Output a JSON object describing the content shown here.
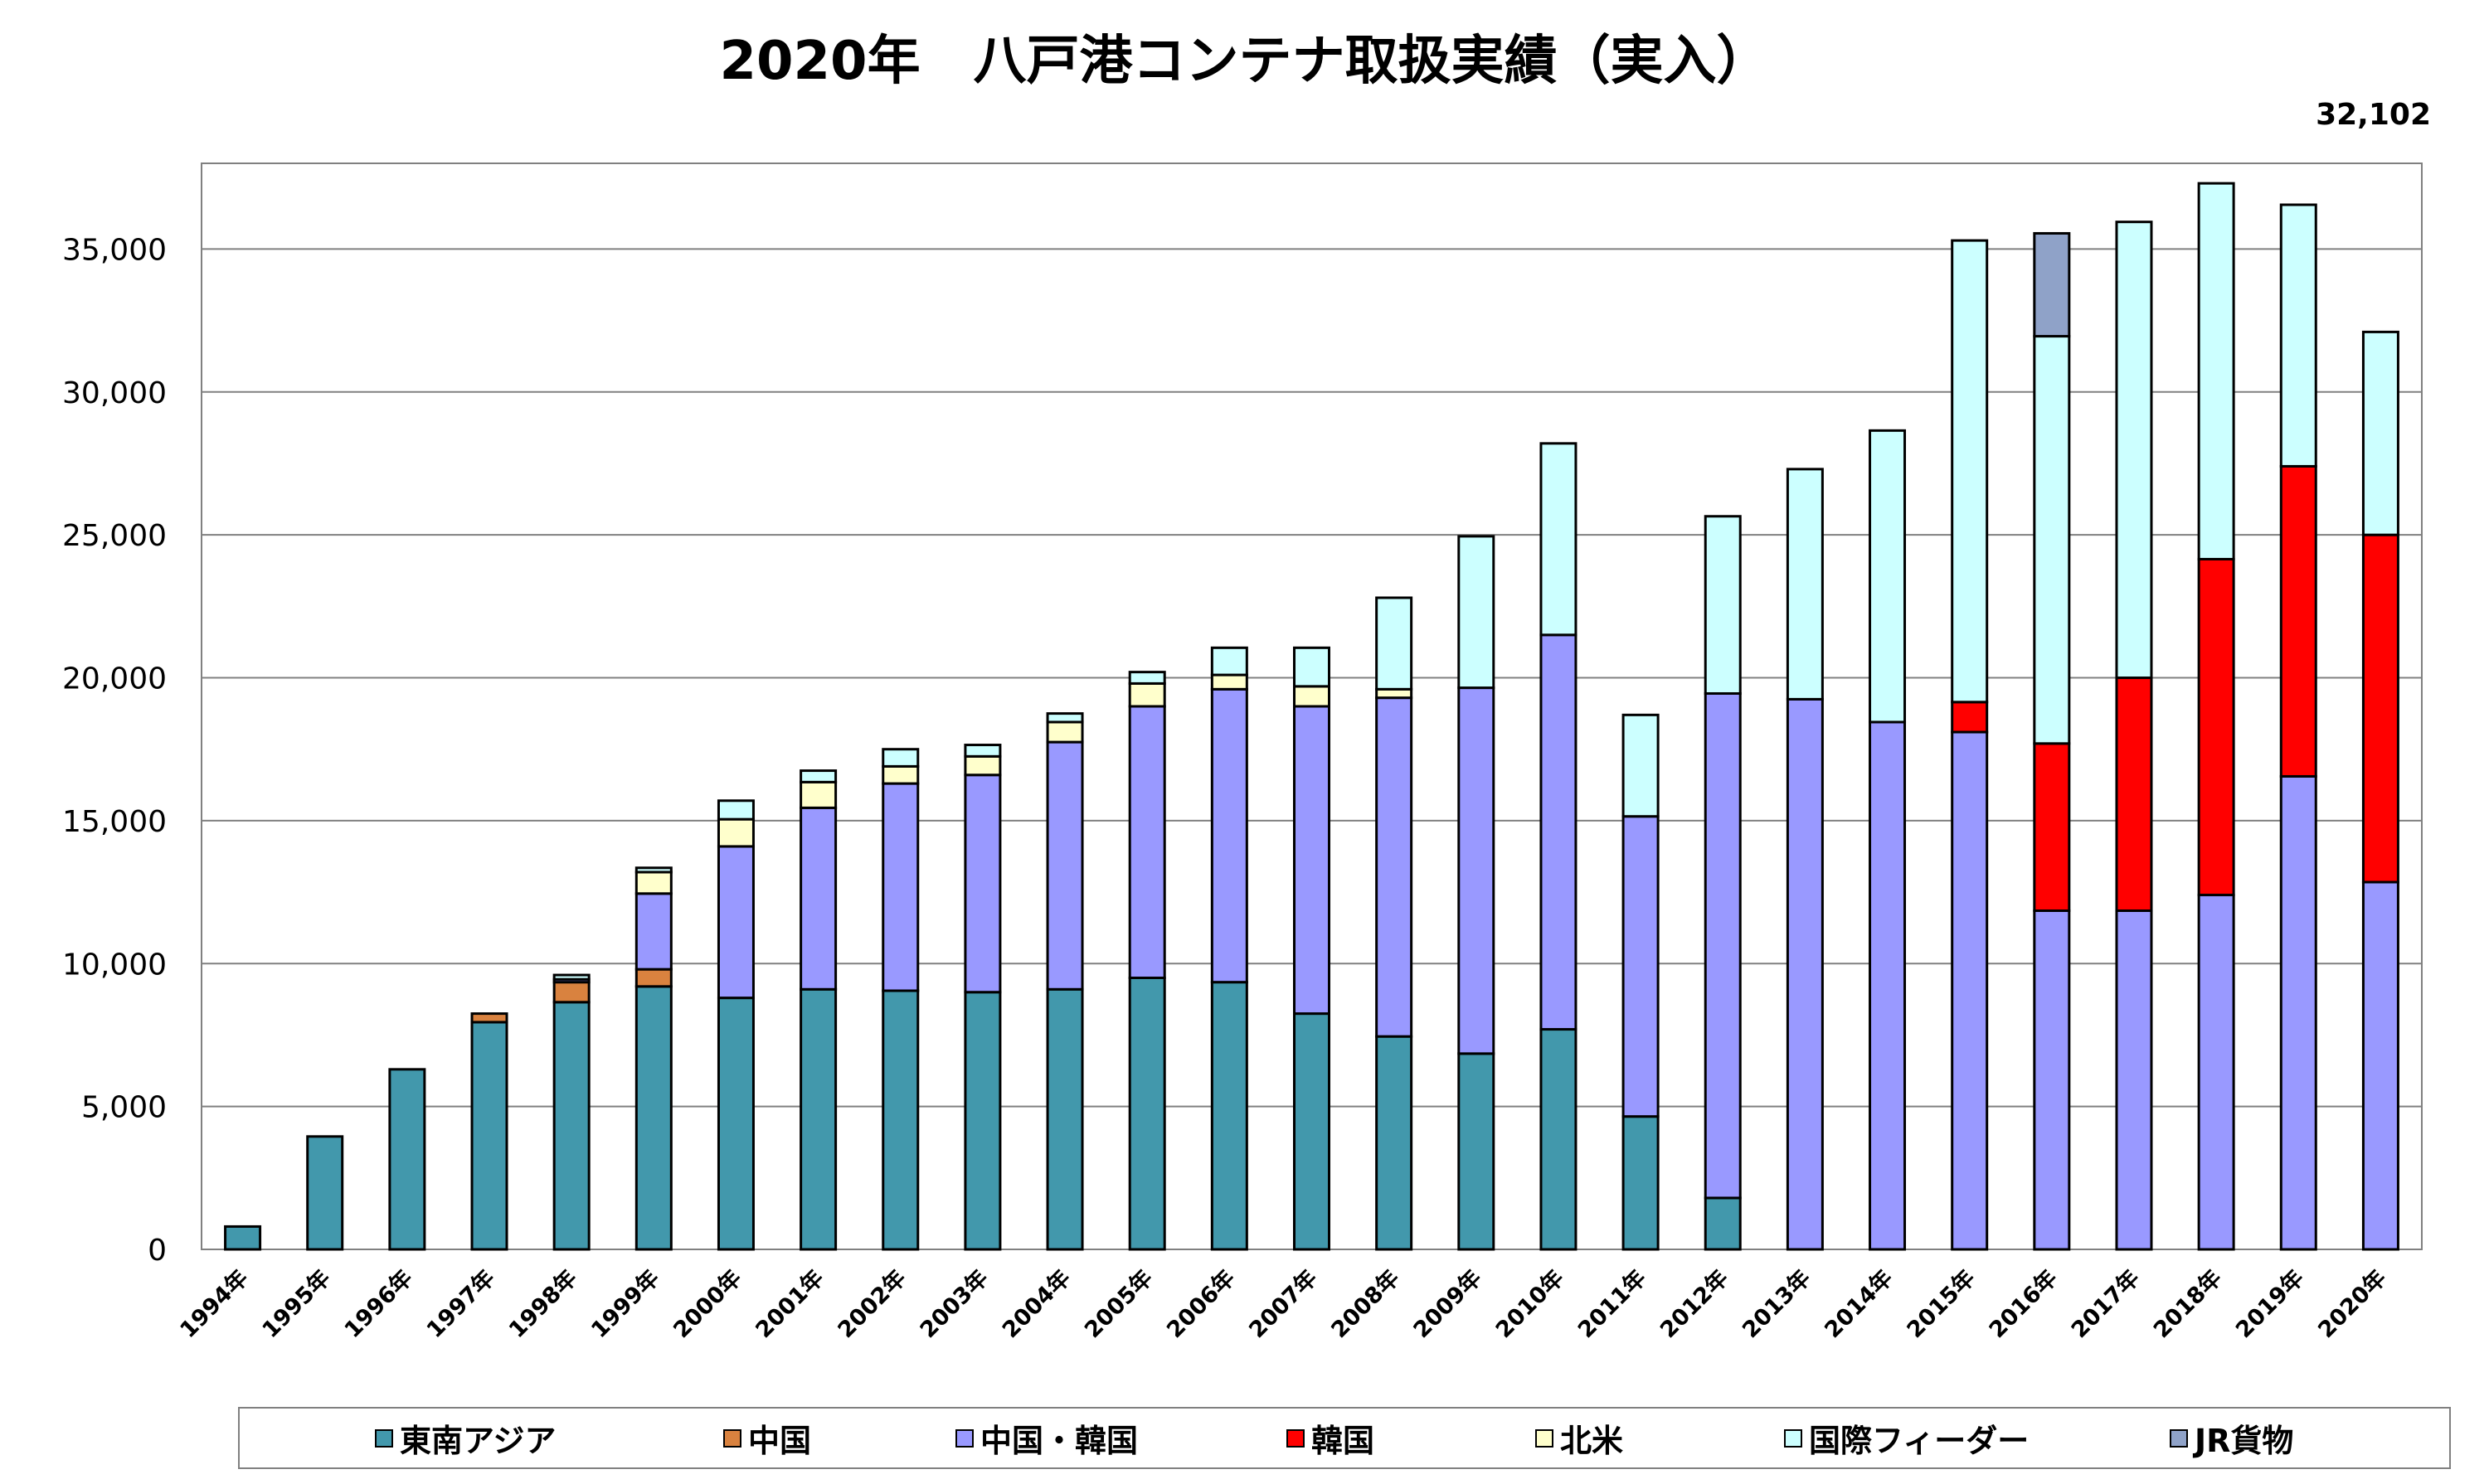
{
  "colors": {
    "東南アジア": "#4298ac",
    "中国": "#d9823f",
    "中国・韓国": "#9999ff",
    "韓国": "#ff0000",
    "北米": "#ffffcc",
    "国際フィーダー": "#ccffff",
    "JR貨物": "#8fa2c8"
  },
  "chart_data": {
    "type": "bar",
    "stacked": true,
    "title": "2020年　八戸港コンテナ取扱実績（実入）",
    "annotation": "32,102",
    "xlabel": "",
    "ylabel": "",
    "ylim": [
      0,
      38000
    ],
    "yticks": [
      0,
      5000,
      10000,
      15000,
      20000,
      25000,
      30000,
      35000
    ],
    "ytick_labels": [
      "0",
      "5,000",
      "10,000",
      "15,000",
      "20,000",
      "25,000",
      "30,000",
      "35,000"
    ],
    "grid": true,
    "legend_position": "bottom",
    "categories": [
      "1994年",
      "1995年",
      "1996年",
      "1997年",
      "1998年",
      "1999年",
      "2000年",
      "2001年",
      "2002年",
      "2003年",
      "2004年",
      "2005年",
      "2006年",
      "2007年",
      "2008年",
      "2009年",
      "2010年",
      "2011年",
      "2012年",
      "2013年",
      "2014年",
      "2015年",
      "2016年",
      "2017年",
      "2018年",
      "2019年",
      "2020年"
    ],
    "series": [
      {
        "name": "東南アジア",
        "values": [
          800,
          3950,
          6300,
          7950,
          8650,
          9200,
          8800,
          9100,
          9050,
          9000,
          9100,
          9500,
          9350,
          8250,
          7450,
          6850,
          7700,
          4650,
          1800,
          0,
          0,
          0,
          0,
          0,
          0,
          0,
          0
        ]
      },
      {
        "name": "中国",
        "values": [
          0,
          0,
          0,
          300,
          700,
          600,
          0,
          0,
          0,
          0,
          0,
          0,
          0,
          0,
          0,
          0,
          0,
          0,
          0,
          0,
          0,
          0,
          0,
          0,
          0,
          0,
          0
        ]
      },
      {
        "name": "中国・韓国",
        "values": [
          0,
          0,
          0,
          0,
          100,
          2650,
          5300,
          6350,
          7250,
          7600,
          8650,
          9500,
          10250,
          10750,
          11850,
          12800,
          13800,
          10500,
          17650,
          19250,
          18450,
          18100,
          11850,
          11850,
          12400,
          16550,
          12850
        ]
      },
      {
        "name": "韓国",
        "values": [
          0,
          0,
          0,
          0,
          0,
          0,
          0,
          0,
          0,
          0,
          0,
          0,
          0,
          0,
          0,
          0,
          0,
          0,
          0,
          0,
          0,
          1050,
          5850,
          8150,
          11750,
          10850,
          12150
        ]
      },
      {
        "name": "北米",
        "values": [
          0,
          0,
          0,
          0,
          0,
          750,
          950,
          900,
          600,
          650,
          700,
          800,
          500,
          700,
          300,
          0,
          0,
          0,
          0,
          0,
          0,
          0,
          0,
          0,
          0,
          0,
          0
        ]
      },
      {
        "name": "国際フィーダー",
        "values": [
          0,
          0,
          0,
          0,
          150,
          150,
          650,
          400,
          600,
          400,
          300,
          400,
          950,
          1350,
          3200,
          5300,
          6700,
          3550,
          6200,
          8050,
          10200,
          16150,
          14250,
          15950,
          13150,
          9150,
          7100
        ]
      },
      {
        "name": "JR貨物",
        "values": [
          0,
          0,
          0,
          0,
          0,
          0,
          0,
          0,
          0,
          0,
          0,
          0,
          0,
          0,
          0,
          0,
          0,
          0,
          0,
          0,
          0,
          0,
          3600,
          0,
          0,
          0,
          0
        ]
      }
    ]
  }
}
